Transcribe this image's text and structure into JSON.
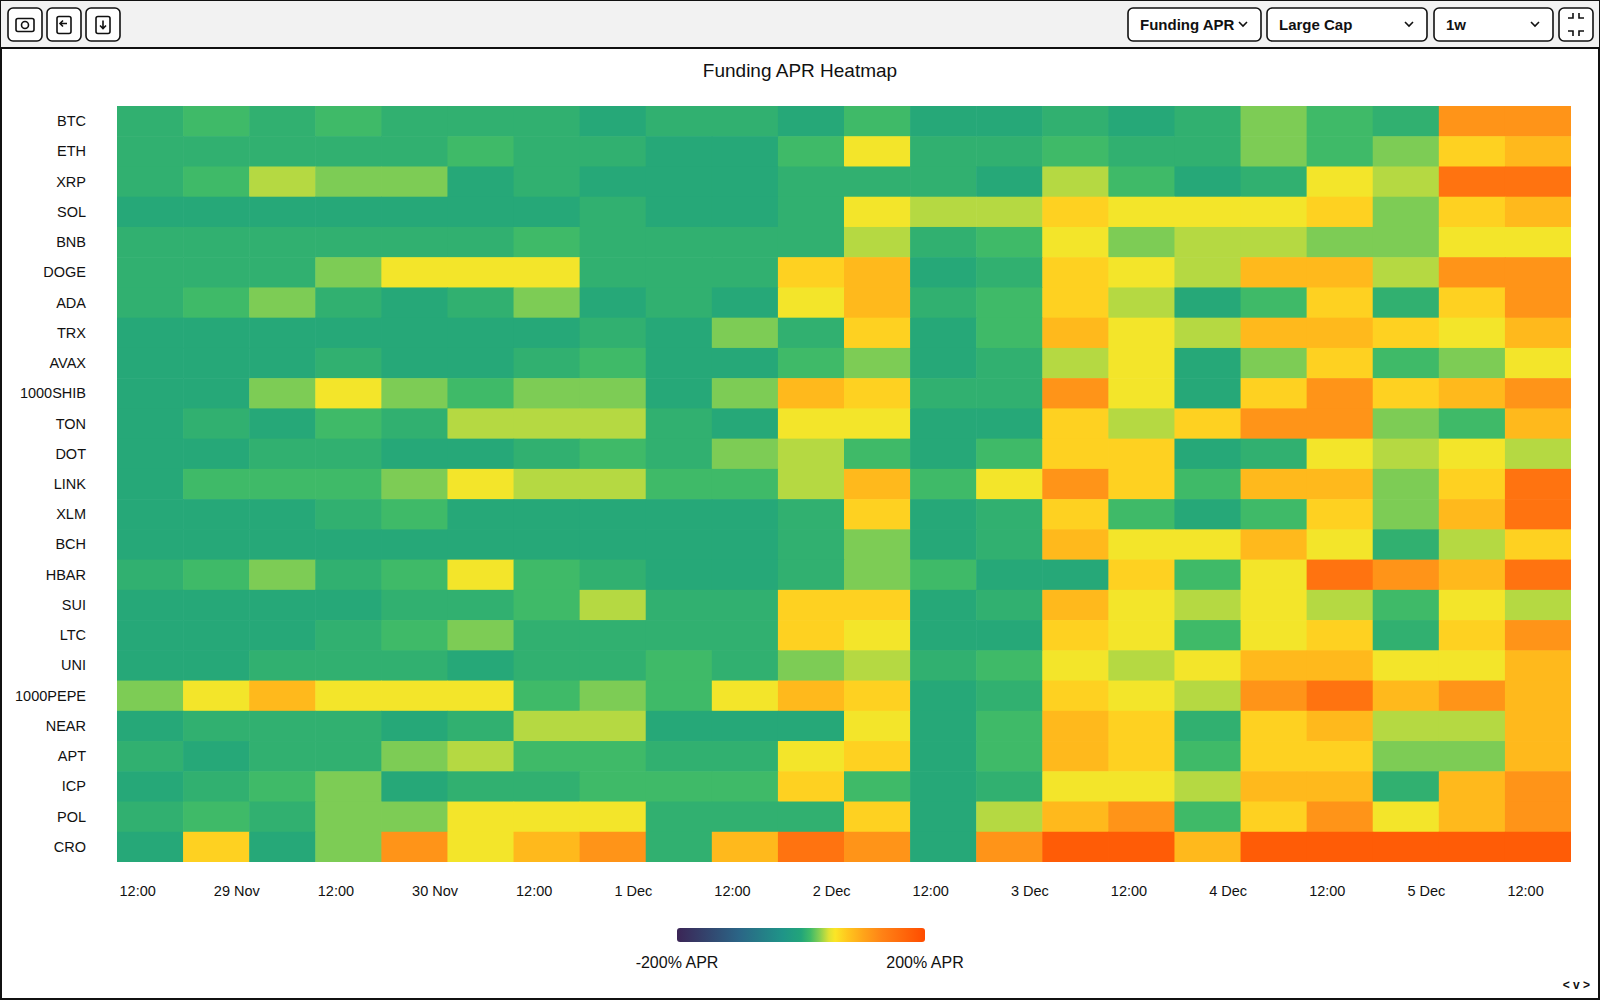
{
  "toolbar": {
    "dropdowns": [
      "Funding APR",
      "Large Cap",
      "1w"
    ],
    "corner_text": "< v >"
  },
  "chart_data": {
    "type": "heatmap",
    "title": "Funding APR Heatmap",
    "categories": [
      "BTC",
      "ETH",
      "XRP",
      "SOL",
      "BNB",
      "DOGE",
      "ADA",
      "TRX",
      "AVAX",
      "1000SHIB",
      "TON",
      "DOT",
      "LINK",
      "XLM",
      "BCH",
      "HBAR",
      "SUI",
      "LTC",
      "UNI",
      "1000PEPE",
      "NEAR",
      "APT",
      "ICP",
      "POL",
      "CRO"
    ],
    "x": [
      0,
      8,
      16,
      24,
      32,
      40,
      48,
      56,
      64,
      72,
      80,
      88,
      96,
      104,
      112,
      120,
      128,
      136,
      144,
      152,
      160,
      168
    ],
    "xlim": [
      0,
      176
    ],
    "xticks": [
      {
        "value": 2.5,
        "label": "12:00"
      },
      {
        "value": 14.5,
        "label": "29 Nov"
      },
      {
        "value": 26.5,
        "label": "12:00"
      },
      {
        "value": 38.5,
        "label": "30 Nov"
      },
      {
        "value": 50.5,
        "label": "12:00"
      },
      {
        "value": 62.5,
        "label": "1 Dec"
      },
      {
        "value": 74.5,
        "label": "12:00"
      },
      {
        "value": 86.5,
        "label": "2 Dec"
      },
      {
        "value": 98.5,
        "label": "12:00"
      },
      {
        "value": 110.5,
        "label": "3 Dec"
      },
      {
        "value": 122.5,
        "label": "12:00"
      },
      {
        "value": 134.5,
        "label": "4 Dec"
      },
      {
        "value": 146.5,
        "label": "12:00"
      },
      {
        "value": 158.5,
        "label": "5 Dec"
      },
      {
        "value": 170.5,
        "label": "12:00"
      }
    ],
    "values": [
      [
        8,
        15,
        8,
        15,
        8,
        8,
        8,
        2,
        8,
        8,
        2,
        15,
        2,
        2,
        8,
        2,
        8,
        28,
        15,
        8,
        115,
        115
      ],
      [
        8,
        8,
        8,
        8,
        8,
        15,
        8,
        8,
        2,
        2,
        15,
        52,
        8,
        8,
        15,
        8,
        8,
        28,
        15,
        28,
        68,
        85
      ],
      [
        8,
        15,
        38,
        28,
        28,
        2,
        8,
        2,
        2,
        2,
        8,
        8,
        8,
        2,
        38,
        15,
        2,
        8,
        52,
        38,
        150,
        150
      ],
      [
        2,
        2,
        2,
        2,
        2,
        2,
        2,
        8,
        2,
        2,
        8,
        52,
        38,
        38,
        68,
        52,
        52,
        52,
        68,
        28,
        68,
        85
      ],
      [
        8,
        8,
        8,
        8,
        8,
        8,
        15,
        8,
        8,
        8,
        8,
        38,
        8,
        15,
        52,
        28,
        38,
        38,
        28,
        28,
        52,
        52
      ],
      [
        8,
        8,
        8,
        28,
        52,
        52,
        52,
        8,
        8,
        8,
        68,
        85,
        2,
        8,
        68,
        52,
        38,
        85,
        85,
        38,
        115,
        115
      ],
      [
        8,
        15,
        28,
        8,
        2,
        8,
        28,
        2,
        8,
        2,
        52,
        85,
        8,
        15,
        68,
        38,
        2,
        15,
        68,
        8,
        68,
        115
      ],
      [
        2,
        2,
        2,
        2,
        2,
        2,
        2,
        8,
        2,
        28,
        8,
        68,
        2,
        15,
        85,
        52,
        38,
        85,
        85,
        68,
        52,
        85
      ],
      [
        2,
        2,
        2,
        8,
        2,
        2,
        8,
        15,
        2,
        2,
        15,
        28,
        2,
        8,
        38,
        52,
        2,
        28,
        68,
        15,
        28,
        52
      ],
      [
        2,
        2,
        28,
        52,
        28,
        15,
        28,
        28,
        2,
        28,
        85,
        68,
        8,
        8,
        115,
        52,
        2,
        68,
        115,
        68,
        85,
        115
      ],
      [
        2,
        8,
        2,
        15,
        8,
        38,
        38,
        38,
        8,
        2,
        52,
        52,
        2,
        2,
        68,
        38,
        68,
        115,
        115,
        28,
        15,
        85
      ],
      [
        2,
        2,
        8,
        8,
        2,
        2,
        8,
        15,
        8,
        28,
        38,
        15,
        2,
        15,
        68,
        68,
        2,
        8,
        52,
        38,
        52,
        38
      ],
      [
        2,
        15,
        15,
        15,
        28,
        52,
        38,
        38,
        15,
        15,
        38,
        85,
        15,
        52,
        115,
        68,
        15,
        85,
        85,
        28,
        68,
        150
      ],
      [
        2,
        2,
        2,
        8,
        15,
        2,
        2,
        2,
        2,
        2,
        8,
        68,
        2,
        8,
        68,
        15,
        2,
        15,
        68,
        28,
        85,
        150
      ],
      [
        2,
        2,
        2,
        2,
        2,
        2,
        2,
        2,
        2,
        2,
        8,
        28,
        2,
        8,
        85,
        52,
        52,
        85,
        52,
        8,
        38,
        68
      ],
      [
        8,
        15,
        28,
        8,
        15,
        52,
        15,
        8,
        2,
        2,
        8,
        28,
        15,
        2,
        2,
        68,
        15,
        52,
        150,
        115,
        85,
        150
      ],
      [
        2,
        2,
        2,
        2,
        8,
        8,
        15,
        38,
        8,
        8,
        68,
        68,
        2,
        8,
        85,
        52,
        38,
        52,
        38,
        15,
        52,
        38
      ],
      [
        2,
        2,
        2,
        8,
        15,
        28,
        8,
        8,
        8,
        8,
        68,
        52,
        2,
        2,
        68,
        52,
        15,
        52,
        68,
        8,
        68,
        115
      ],
      [
        2,
        2,
        8,
        8,
        8,
        2,
        8,
        8,
        15,
        8,
        28,
        38,
        8,
        15,
        52,
        38,
        52,
        85,
        85,
        52,
        52,
        85
      ],
      [
        28,
        52,
        85,
        52,
        52,
        52,
        15,
        28,
        15,
        52,
        85,
        68,
        2,
        8,
        68,
        52,
        38,
        115,
        150,
        85,
        115,
        85
      ],
      [
        2,
        8,
        8,
        8,
        2,
        8,
        38,
        38,
        2,
        2,
        2,
        52,
        2,
        15,
        85,
        68,
        8,
        68,
        85,
        38,
        38,
        85
      ],
      [
        8,
        2,
        8,
        8,
        28,
        38,
        15,
        15,
        8,
        8,
        52,
        68,
        2,
        15,
        85,
        68,
        15,
        68,
        68,
        28,
        28,
        85
      ],
      [
        2,
        8,
        15,
        28,
        2,
        8,
        8,
        15,
        15,
        15,
        68,
        15,
        2,
        8,
        52,
        52,
        38,
        85,
        85,
        8,
        85,
        115
      ],
      [
        8,
        15,
        8,
        28,
        28,
        52,
        52,
        52,
        8,
        8,
        8,
        68,
        2,
        38,
        85,
        115,
        15,
        68,
        115,
        52,
        85,
        115
      ],
      [
        2,
        68,
        2,
        28,
        115,
        52,
        85,
        115,
        8,
        85,
        150,
        115,
        2,
        115,
        180,
        180,
        85,
        180,
        180,
        180,
        180,
        180
      ]
    ],
    "colorbar": {
      "range": [
        -200,
        200
      ],
      "ticks": [
        {
          "value": -200,
          "label": "-200% APR"
        },
        {
          "value": 200,
          "label": "200% APR"
        }
      ],
      "colorscale": [
        [
          -200,
          "#3b2556"
        ],
        [
          -100,
          "#2b6586"
        ],
        [
          -30,
          "#1f9488"
        ],
        [
          0,
          "#22a57a"
        ],
        [
          15,
          "#3fba68"
        ],
        [
          30,
          "#86cf52"
        ],
        [
          45,
          "#dfe234"
        ],
        [
          55,
          "#fbe626"
        ],
        [
          75,
          "#ffc61e"
        ],
        [
          100,
          "#ffa51a"
        ],
        [
          130,
          "#ff8316"
        ],
        [
          200,
          "#ff4c00"
        ]
      ]
    }
  }
}
